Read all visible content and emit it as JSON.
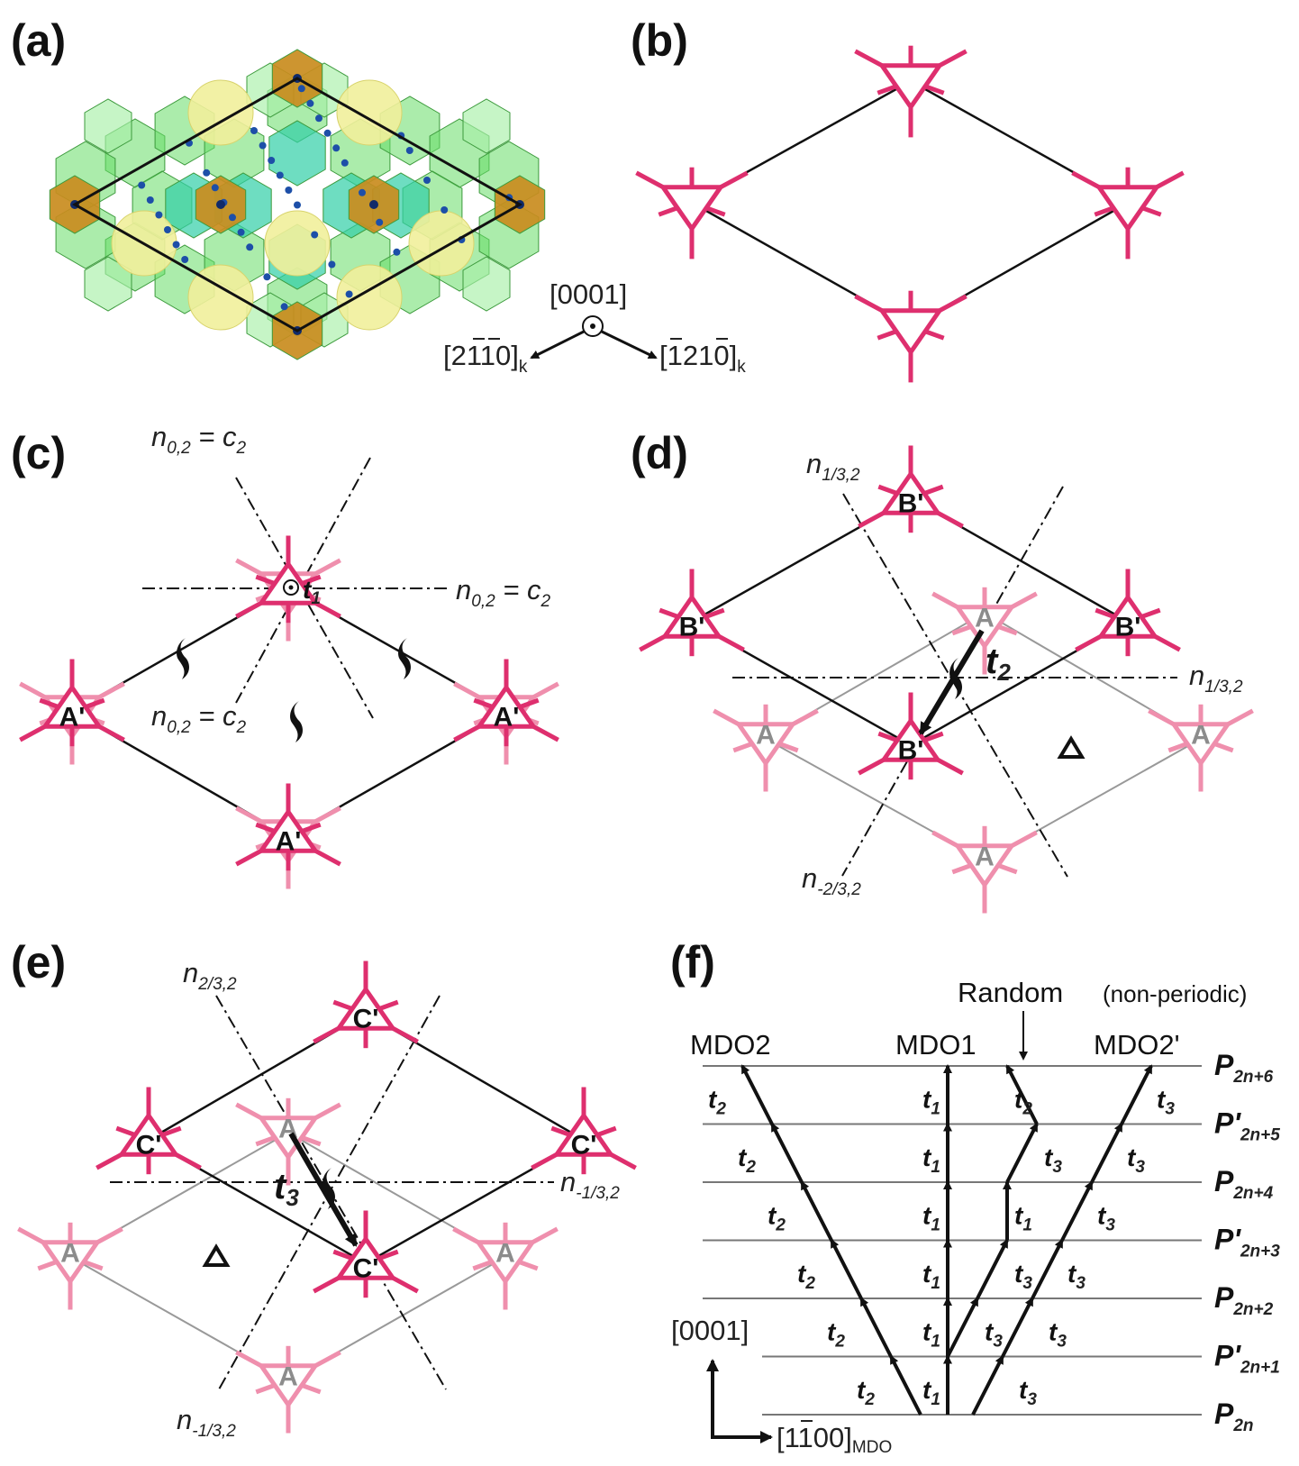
{
  "panels": {
    "a": {
      "label": "(a)"
    },
    "b": {
      "label": "(b)"
    },
    "c": {
      "label": "(c)",
      "op_top": "n",
      "op_top_sub": "0,2",
      "op_top_eq": " = c",
      "op_top_eq_sub": "2",
      "op_right": "n",
      "op_right_sub": "0,2",
      "op_right_eq": " = c",
      "op_right_eq_sub": "2",
      "op_mid": "n",
      "op_mid_sub": "0,2",
      "op_mid_eq": " = c",
      "op_mid_eq_sub": "2",
      "t_label": "t",
      "t_sub": "1",
      "site": "A'"
    },
    "d": {
      "label": "(d)",
      "op_top": "n",
      "op_top_sub": "1/3,2",
      "op_right": "n",
      "op_right_sub": "1/3,2",
      "op_bottom": "n",
      "op_bottom_sub": "-2/3,2",
      "t_label": "t",
      "t_sub": "2",
      "site_upper": "B'",
      "site_lower": "A"
    },
    "e": {
      "label": "(e)",
      "op_top": "n",
      "op_top_sub": "2/3,2",
      "op_right": "n",
      "op_right_sub": "-1/3,2",
      "op_bottom": "n",
      "op_bottom_sub": "-1/3,2",
      "t_label": "t",
      "t_sub": "3",
      "site_upper": "C'",
      "site_lower": "A"
    },
    "f": {
      "label": "(f)",
      "random": "Random",
      "random_note": "(non-periodic)",
      "columns": [
        "MDO2",
        "MDO1",
        "MDO2'"
      ],
      "rows": [
        {
          "main": "P",
          "prime": "",
          "sub": "2n+6"
        },
        {
          "main": "P",
          "prime": "'",
          "sub": "2n+5"
        },
        {
          "main": "P",
          "prime": "",
          "sub": "2n+4"
        },
        {
          "main": "P",
          "prime": "'",
          "sub": "2n+3"
        },
        {
          "main": "P",
          "prime": "",
          "sub": "2n+2"
        },
        {
          "main": "P",
          "prime": "'",
          "sub": "2n+1"
        },
        {
          "main": "P",
          "prime": "",
          "sub": "2n"
        }
      ],
      "t_prefix": "t",
      "t_subs": {
        "t1": "1",
        "t2": "2",
        "t3": "3"
      },
      "axis_up": "[0001]",
      "axis_right": "[1100]",
      "axis_right_bar_index": 1,
      "axis_right_sub": "MDO"
    }
  },
  "axes_a": {
    "center": "[0001]",
    "left": "[2110]",
    "left_sub": "k",
    "right": "[1210]",
    "right_sub": "k"
  },
  "colors": {
    "magenta": "#de2f6e",
    "pink": "#ef8fad",
    "grey_text": "#8c8c8c",
    "yellow": "#f1ef9b",
    "gold": "#c98c1e",
    "green": "#66dd66",
    "teal": "#30cfa6",
    "light_green": "#a8efa8",
    "atom": "#1d4fa8"
  }
}
